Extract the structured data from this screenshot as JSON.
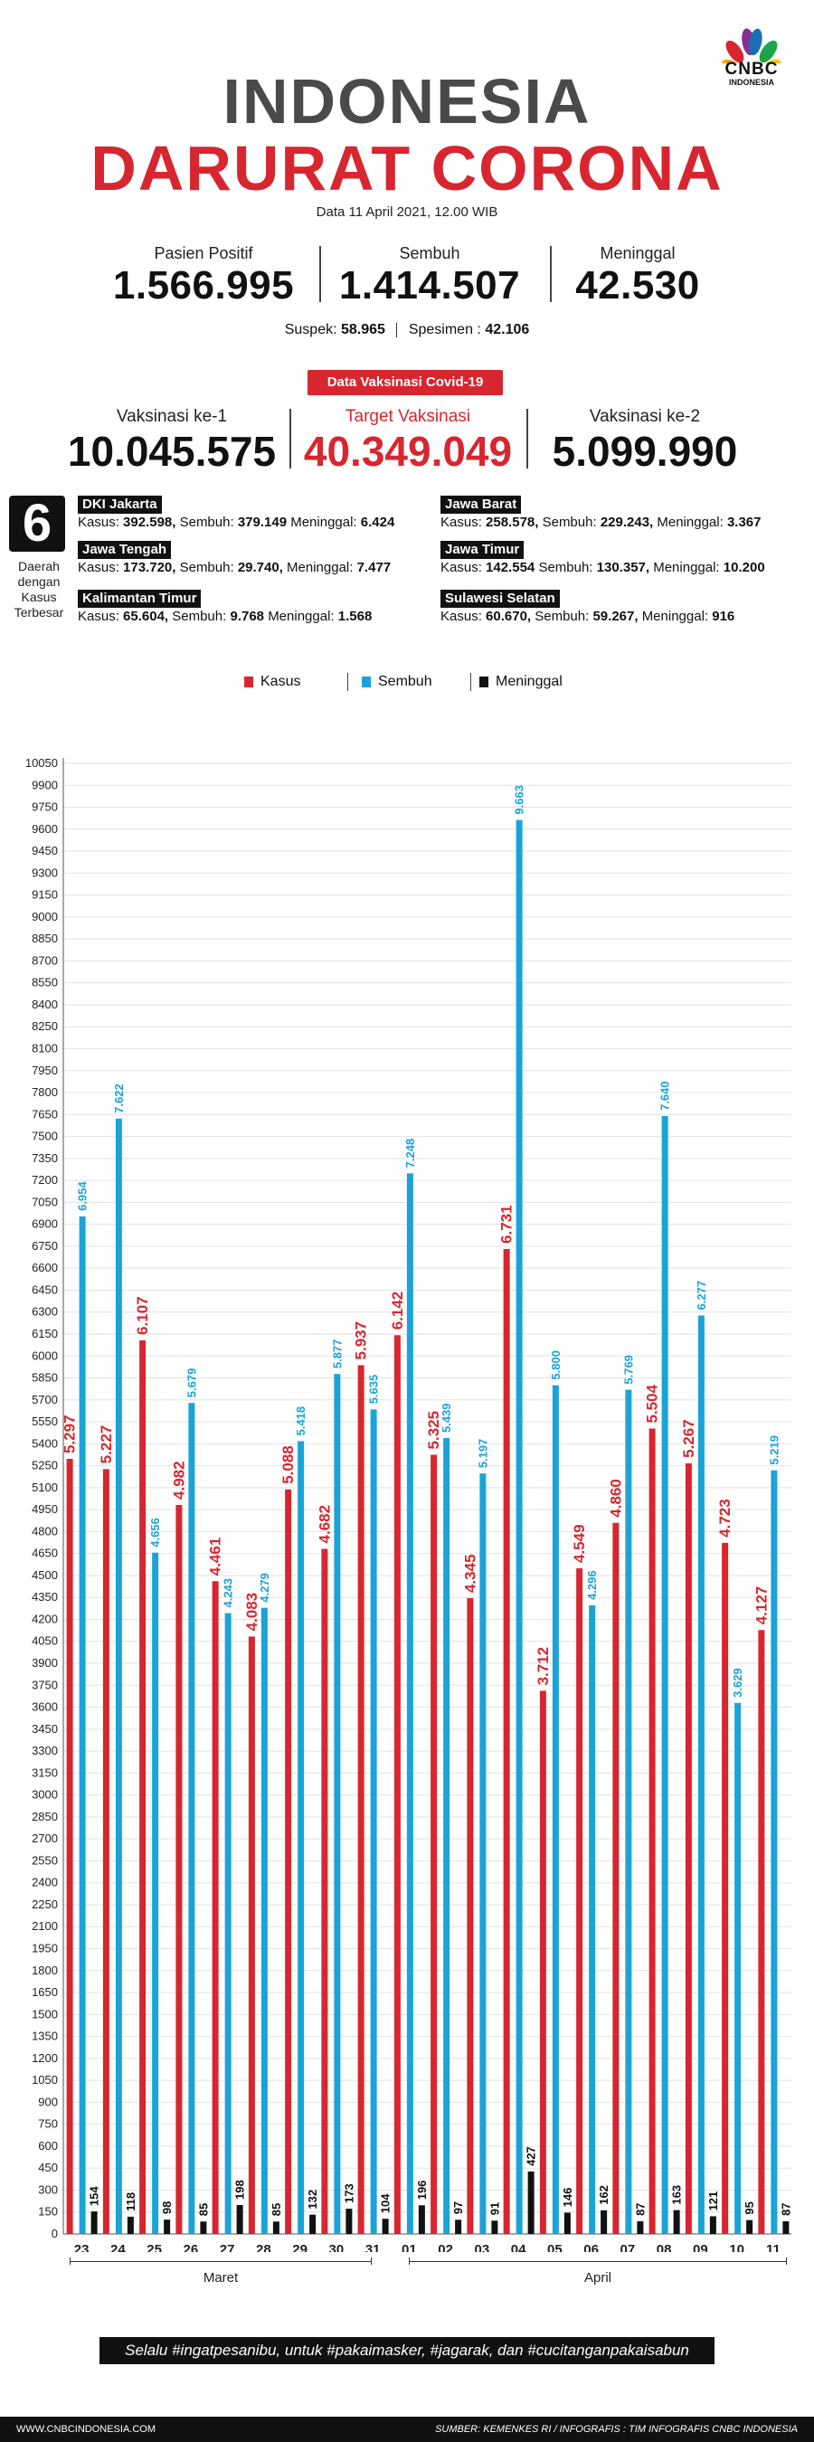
{
  "brand": {
    "name": "CNBC",
    "sub": "INDONESIA"
  },
  "header": {
    "title_line1": "INDONESIA",
    "title_line2": "DARURAT CORONA",
    "date": "Data 11 April 2021, 12.00 WIB"
  },
  "stats": [
    {
      "label": "Pasien Positif",
      "value": "1.566.995"
    },
    {
      "label": "Sembuh",
      "value": "1.414.507"
    },
    {
      "label": "Meninggal",
      "value": "42.530"
    }
  ],
  "sub_stats": {
    "suspek_label": "Suspek:",
    "suspek_value": "58.965",
    "spesimen_label": "Spesimen :",
    "spesimen_value": "42.106"
  },
  "vaccination": {
    "badge": "Data Vaksinasi Covid-19",
    "items": [
      {
        "label": "Vaksinasi ke-1",
        "value": "10.045.575"
      },
      {
        "label": "Target Vaksinasi",
        "value": "40.349.049"
      },
      {
        "label": "Vaksinasi ke-2",
        "value": "5.099.990"
      }
    ]
  },
  "regions_box": {
    "number": "6",
    "caption": "Daerah dengan Kasus Terbesar"
  },
  "regions": [
    {
      "name": "DKI Jakarta",
      "kasus": "392.598,",
      "sembuh": "379.149",
      "meninggal": "6.424"
    },
    {
      "name": "Jawa Barat",
      "kasus": "258.578,",
      "sembuh": "229.243,",
      "meninggal": "3.367"
    },
    {
      "name": "Jawa Tengah",
      "kasus": "173.720,",
      "sembuh": "29.740,",
      "meninggal": "7.477"
    },
    {
      "name": "Jawa Timur",
      "kasus": "142.554",
      "sembuh": "130.357,",
      "meninggal": "10.200"
    },
    {
      "name": "Kalimantan Timur",
      "kasus": "65.604,",
      "sembuh": "9.768",
      "meninggal": "1.568"
    },
    {
      "name": "Sulawesi Selatan",
      "kasus": "60.670,",
      "sembuh": "59.267,",
      "meninggal": "916"
    }
  ],
  "region_labels": {
    "kasus": "Kasus:",
    "sembuh": "Sembuh:",
    "meninggal": "Meninggal:"
  },
  "legend": [
    {
      "label": "Kasus",
      "color": "#d7262f"
    },
    {
      "label": "Sembuh",
      "color": "#1aa3d9"
    },
    {
      "label": "Meninggal",
      "color": "#111111"
    }
  ],
  "chart_data": {
    "type": "bar",
    "categories": [
      "23",
      "24",
      "25",
      "26",
      "27",
      "28",
      "29",
      "30",
      "31",
      "01",
      "02",
      "03",
      "04",
      "05",
      "06",
      "07",
      "08",
      "09",
      "10",
      "11"
    ],
    "months": [
      {
        "label": "Maret",
        "from": 0,
        "to": 8
      },
      {
        "label": "April",
        "from": 9,
        "to": 19
      }
    ],
    "series": [
      {
        "name": "Kasus",
        "color": "#d7262f",
        "values": [
          5297,
          5227,
          6107,
          4982,
          4461,
          4083,
          5088,
          4682,
          5937,
          6142,
          5325,
          4345,
          6731,
          3712,
          4549,
          4860,
          5504,
          5267,
          4723,
          4127
        ],
        "labels": [
          "5.297",
          "5.227",
          "6.107",
          "4.982",
          "4.461",
          "4.083",
          "5.088",
          "4.682",
          "5.937",
          "6.142",
          "5.325",
          "4.345",
          "6.731",
          "3.712",
          "4.549",
          "4.860",
          "5.504",
          "5.267",
          "4.723",
          "4.127"
        ]
      },
      {
        "name": "Sembuh",
        "color": "#1aa3d9",
        "values": [
          6954,
          7622,
          4656,
          5679,
          4243,
          4279,
          5418,
          5877,
          5635,
          7248,
          5439,
          5197,
          9663,
          5800,
          4296,
          5769,
          7640,
          6277,
          3629,
          5219
        ],
        "labels": [
          "6.954",
          "7.622",
          "4.656",
          "5.679",
          "4.243",
          "4.279",
          "5.418",
          "5.877",
          "5.635",
          "7.248",
          "5.439",
          "5.197",
          "9.663",
          "5.800",
          "4.296",
          "5.769",
          "7.640",
          "6.277",
          "3.629",
          "5.219"
        ]
      },
      {
        "name": "Meninggal",
        "color": "#111111",
        "values": [
          154,
          118,
          98,
          85,
          198,
          85,
          132,
          173,
          104,
          196,
          97,
          91,
          427,
          146,
          162,
          87,
          163,
          121,
          95,
          87
        ],
        "labels": [
          "154",
          "118",
          "98",
          "85",
          "198",
          "85",
          "132",
          "173",
          "104",
          "196",
          "97",
          "91",
          "427",
          "146",
          "162",
          "87",
          "163",
          "121",
          "95",
          "87"
        ]
      }
    ],
    "ylim": [
      0,
      10050
    ],
    "yticks": [
      0,
      150,
      300,
      450,
      600,
      750,
      900,
      1050,
      1200,
      1350,
      1500,
      1650,
      1800,
      1950,
      2100,
      2250,
      2400,
      2550,
      2700,
      2850,
      3000,
      3150,
      3300,
      3450,
      3600,
      3750,
      3900,
      4050,
      4200,
      4350,
      4500,
      4650,
      4800,
      4950,
      5100,
      5250,
      5400,
      5550,
      5700,
      5850,
      6000,
      6150,
      6300,
      6450,
      6600,
      6750,
      6900,
      7050,
      7200,
      7350,
      7500,
      7650,
      7800,
      7950,
      8100,
      8250,
      8400,
      8550,
      8700,
      8850,
      9000,
      9150,
      9300,
      9450,
      9600,
      9750,
      9900,
      10050
    ],
    "grid": true,
    "legend_position": "top"
  },
  "slogan": "Selalu #ingatpesanibu, untuk #pakaimasker, #jagarak, dan #cucitanganpakaisabun",
  "footer": {
    "left": "WWW.CNBCINDONESIA.COM",
    "right": "SUMBER: KEMENKES RI / INFOGRAFIS : TIM INFOGRAFIS CNBC INDONESIA"
  }
}
